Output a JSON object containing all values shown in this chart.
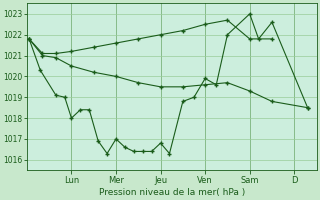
{
  "xlabel": "Pression niveau de la mer( hPa )",
  "bg_color": "#c8e8cc",
  "plot_bg_color": "#cceedd",
  "grid_color": "#99cc99",
  "line_color": "#1a5c1a",
  "ylim": [
    1015.5,
    1023.5
  ],
  "yticks": [
    1016,
    1017,
    1018,
    1019,
    1020,
    1021,
    1022,
    1023
  ],
  "day_labels": [
    "Lun",
    "Mer",
    "Jeu",
    "Ven",
    "Sam",
    "D"
  ],
  "day_positions": [
    1.0,
    2.0,
    3.0,
    4.0,
    5.0,
    6.0
  ],
  "xlim": [
    0.0,
    6.5
  ],
  "series1_x": [
    0.05,
    0.35,
    0.65,
    1.0,
    1.5,
    2.0,
    2.5,
    3.0,
    3.5,
    4.0,
    4.5,
    5.0,
    5.5
  ],
  "series1_y": [
    1021.8,
    1021.1,
    1021.1,
    1021.2,
    1021.4,
    1021.6,
    1021.8,
    1022.0,
    1022.2,
    1022.5,
    1022.7,
    1021.8,
    1021.8
  ],
  "series2_x": [
    0.05,
    0.35,
    0.65,
    1.0,
    1.5,
    2.0,
    2.5,
    3.0,
    3.5,
    4.0,
    4.5,
    5.0,
    5.5,
    6.3
  ],
  "series2_y": [
    1021.8,
    1021.0,
    1020.9,
    1020.5,
    1020.2,
    1020.0,
    1019.7,
    1019.5,
    1019.5,
    1019.6,
    1019.7,
    1019.3,
    1018.8,
    1018.5
  ],
  "series3_x": [
    0.05,
    0.3,
    0.65,
    0.85,
    1.0,
    1.2,
    1.4,
    1.6,
    1.8,
    2.0,
    2.2,
    2.4,
    2.6,
    2.8,
    3.0,
    3.2,
    3.5,
    3.75,
    4.0,
    4.25,
    4.5,
    5.0,
    5.2,
    5.5,
    6.3
  ],
  "series3_y": [
    1021.8,
    1020.3,
    1019.1,
    1019.0,
    1018.0,
    1018.4,
    1018.4,
    1016.9,
    1016.3,
    1017.0,
    1016.6,
    1016.4,
    1016.4,
    1016.4,
    1016.8,
    1016.3,
    1018.8,
    1019.0,
    1019.9,
    1019.6,
    1022.0,
    1023.0,
    1021.8,
    1022.6,
    1018.5
  ]
}
